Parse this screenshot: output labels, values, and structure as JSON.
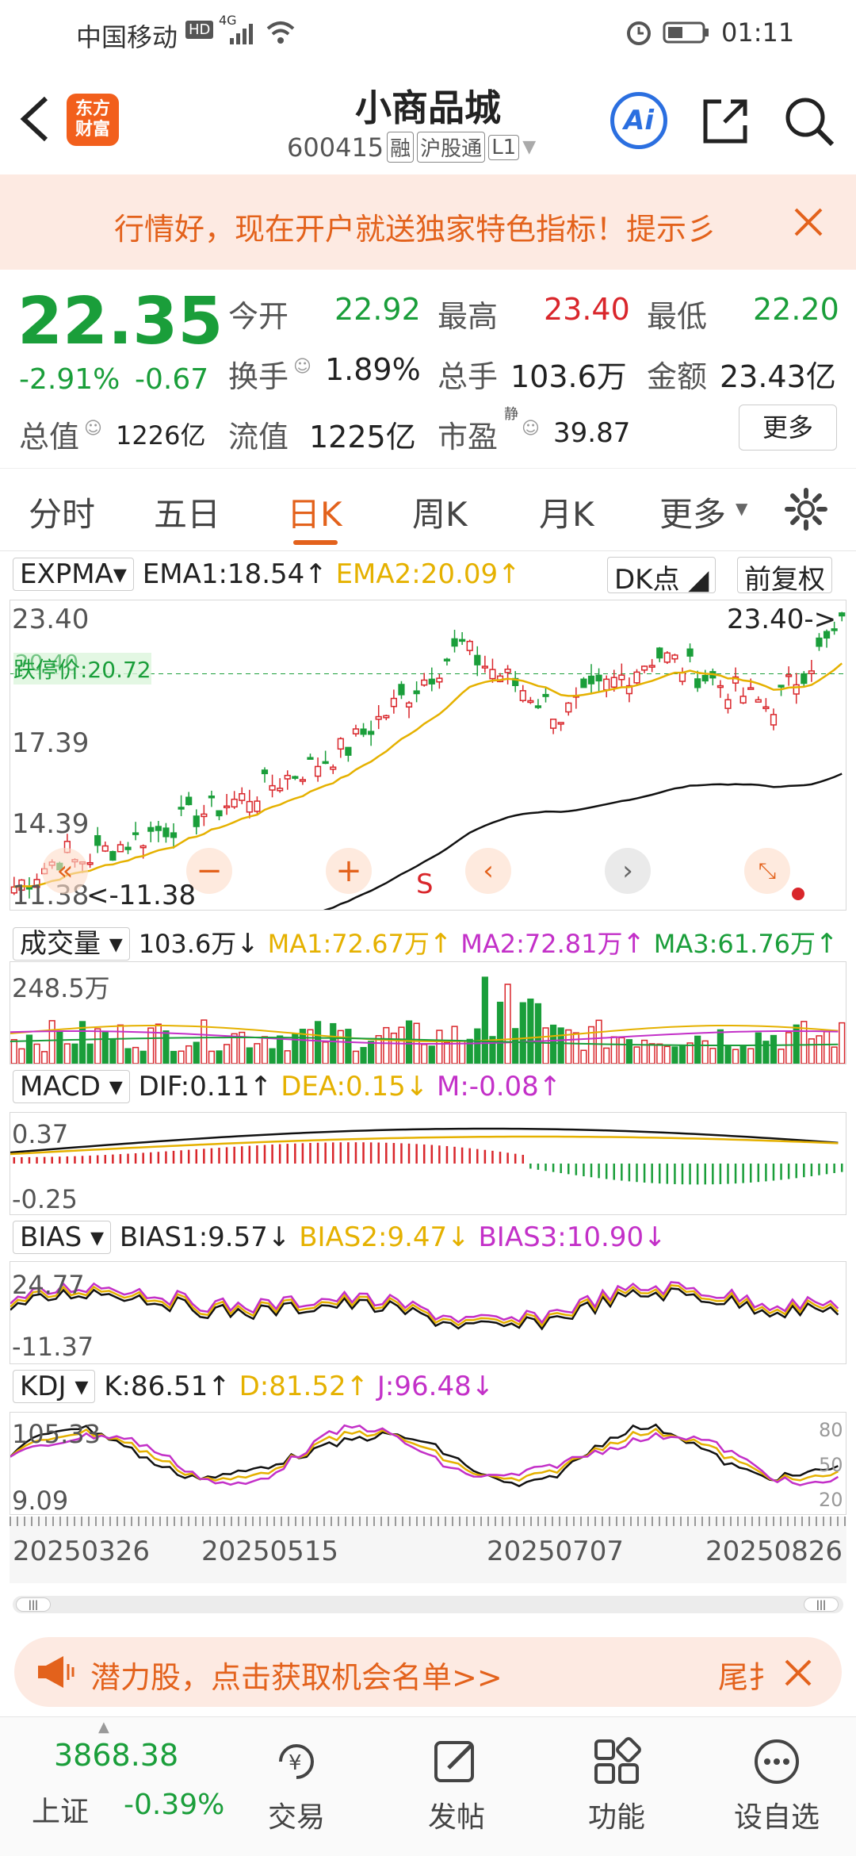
{
  "status": {
    "carrier": "中国移动",
    "net": "4G",
    "time": "01:11"
  },
  "header": {
    "title": "小商品城",
    "code": "600415",
    "tags": [
      "融",
      "沪股通",
      "L1"
    ],
    "logo": "东方财富",
    "ai": "Ai"
  },
  "banner": {
    "text": "行情好，现在开户就送独家特色指标！提示彡"
  },
  "quote": {
    "price": "22.35",
    "pct": "-2.91%",
    "chg": "-0.67",
    "open_l": "今开",
    "open": "22.92",
    "high_l": "最高",
    "high": "23.40",
    "low_l": "最低",
    "low": "22.20",
    "turn_l": "换手",
    "turn": "1.89%",
    "vol_l": "总手",
    "vol": "103.6万",
    "amt_l": "金额",
    "amt": "23.43亿",
    "cap_l": "总值",
    "cap": "1226亿",
    "float_l": "流值",
    "float": "1225亿",
    "pe_l": "市盈",
    "pe_sup": "静",
    "pe": "39.87",
    "more": "更多"
  },
  "tabs": [
    "分时",
    "五日",
    "日K",
    "周K",
    "月K",
    "更多"
  ],
  "chart": {
    "ind": "EXPMA",
    "ema1": "EMA1:18.54",
    "ema2": "EMA2:20.09",
    "dk": "DK点",
    "fq": "前复权",
    "y1": "23.40",
    "y2": "17.39",
    "y3": "14.39",
    "y4": "11.38",
    "hi_mark": "23.40->",
    "lo_mark": "<-11.38",
    "limit": "跌停价:20.72",
    "overlay": "20.40",
    "s": "S"
  },
  "volume": {
    "ind": "成交量",
    "v": "103.6万",
    "ma1": "MA1:72.67万",
    "ma2": "MA2:72.81万",
    "ma3": "MA3:61.76万",
    "ymax": "248.5万"
  },
  "macd": {
    "ind": "MACD",
    "dif": "DIF:0.11",
    "dea": "DEA:0.15",
    "m": "M:-0.08",
    "ymax": "0.37",
    "ymin": "-0.25"
  },
  "bias": {
    "ind": "BIAS",
    "b1": "BIAS1:9.57",
    "b2": "BIAS2:9.47",
    "b3": "BIAS3:10.90",
    "ymax": "24.77",
    "ymin": "-11.37"
  },
  "kdj": {
    "ind": "KDJ",
    "k": "K:86.51",
    "d": "D:81.52",
    "j": "J:96.48",
    "ymax": "105.33",
    "ymin": "9.09",
    "r80": "80",
    "r50": "50",
    "r20": "20"
  },
  "dates": [
    "20250326",
    "20250515",
    "20250707",
    "20250826"
  ],
  "promo": {
    "text": "潜力股，点击获取机会名单>>",
    "right": "尾扌"
  },
  "bottom": {
    "index_val": "3868.38",
    "index_name": "上证",
    "index_pct": "-0.39%",
    "nav": [
      "交易",
      "发帖",
      "功能",
      "设自选"
    ]
  },
  "colors": {
    "up": "#d9262b",
    "down": "#1a9e3a",
    "accent": "#e3621c",
    "ema2": "#e5b100",
    "bias3": "#c330c8"
  },
  "icons": [
    "back-arrow-icon",
    "ai-icon",
    "share-icon",
    "search-icon",
    "settings-gear-icon",
    "speaker-icon",
    "close-icon"
  ]
}
